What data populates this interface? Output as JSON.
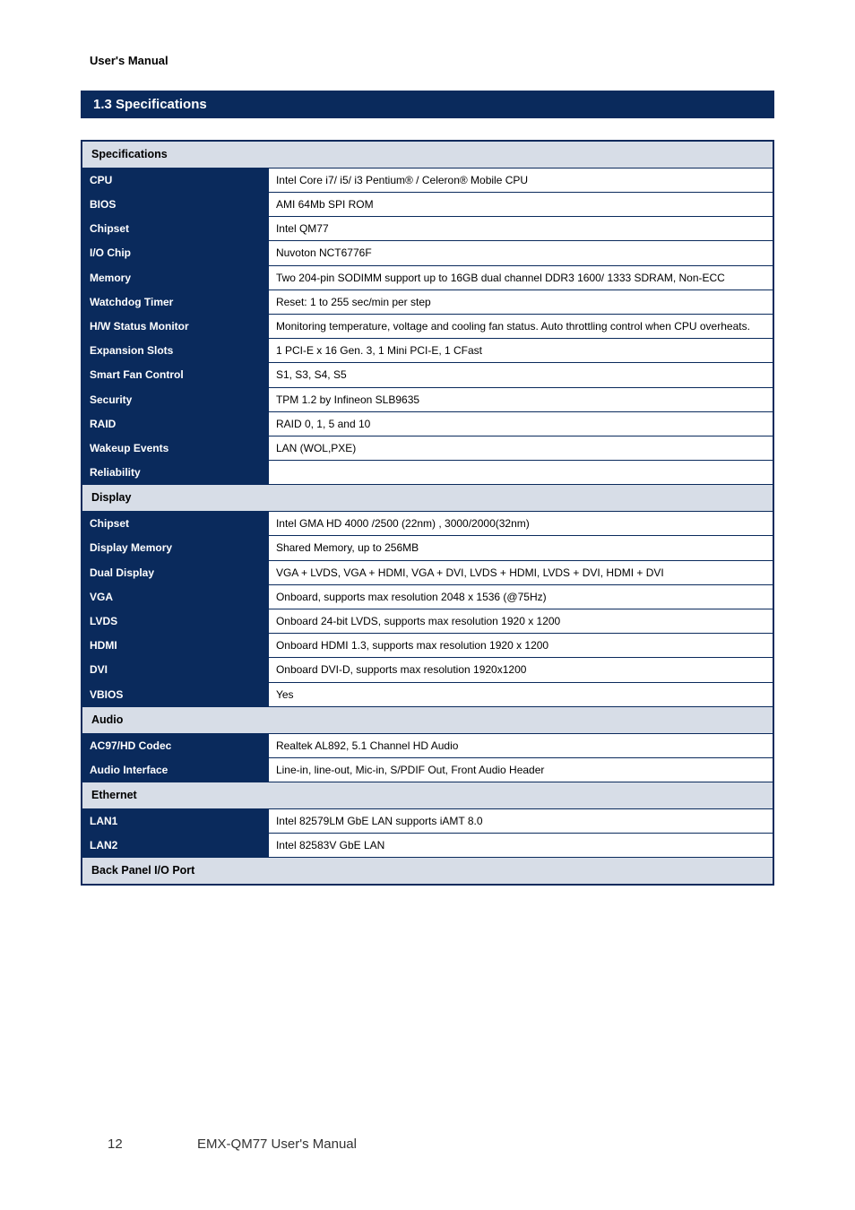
{
  "header": {
    "manual_label": "User's Manual"
  },
  "title": "1.3 Specifications",
  "sections": [
    {
      "name": "Specifications",
      "rows": [
        {
          "label": "CPU",
          "value": "Intel Core i7/ i5/ i3 Pentium® / Celeron® Mobile CPU"
        },
        {
          "label": "BIOS",
          "value": "AMI 64Mb SPI ROM"
        },
        {
          "label": "Chipset",
          "value": "Intel QM77"
        },
        {
          "label": "I/O Chip",
          "value": "Nuvoton NCT6776F"
        },
        {
          "label": "Memory",
          "value": "Two 204-pin SODIMM support up to 16GB dual channel DDR3 1600/ 1333 SDRAM, Non-ECC"
        },
        {
          "label": "Watchdog Timer",
          "value": "Reset: 1 to 255 sec/min per step"
        },
        {
          "label": "H/W Status Monitor",
          "value": "Monitoring temperature, voltage and cooling fan status. Auto throttling control when CPU overheats."
        },
        {
          "label": "Expansion Slots",
          "value": "1 PCI-E x 16 Gen. 3, 1 Mini PCI-E, 1 CFast"
        },
        {
          "label": "Smart Fan Control",
          "value": "S1, S3, S4, S5"
        },
        {
          "label": "Security",
          "value": "TPM 1.2 by Infineon SLB9635"
        },
        {
          "label": "RAID",
          "value": "RAID 0, 1, 5 and 10"
        },
        {
          "label": "Wakeup Events",
          "value": "LAN (WOL,PXE)"
        },
        {
          "label": "Reliability",
          "value": ""
        }
      ]
    },
    {
      "name": "Display",
      "rows": [
        {
          "label": "Chipset",
          "value": "Intel GMA HD 4000 /2500 (22nm) , 3000/2000(32nm)"
        },
        {
          "label": "Display Memory",
          "value": "Shared Memory, up to 256MB"
        },
        {
          "label": "Dual Display",
          "value": "VGA + LVDS, VGA + HDMI, VGA + DVI, LVDS + HDMI, LVDS + DVI, HDMI + DVI"
        },
        {
          "label": "VGA",
          "value": "Onboard, supports max resolution 2048 x 1536 (@75Hz)"
        },
        {
          "label": "LVDS",
          "value": "Onboard 24-bit LVDS, supports max resolution 1920 x 1200"
        },
        {
          "label": "HDMI",
          "value": "Onboard HDMI 1.3, supports max resolution 1920 x 1200"
        },
        {
          "label": "DVI",
          "value": "Onboard DVI-D, supports max resolution 1920x1200"
        },
        {
          "label": "VBIOS",
          "value": "Yes"
        }
      ]
    },
    {
      "name": "Audio",
      "rows": [
        {
          "label": "AC97/HD Codec",
          "value": "Realtek AL892, 5.1 Channel HD Audio"
        },
        {
          "label": "Audio Interface",
          "value": "Line-in, line-out, Mic-in, S/PDIF Out, Front Audio Header"
        }
      ]
    },
    {
      "name": "Ethernet",
      "rows": [
        {
          "label": "LAN1",
          "value": "Intel 82579LM GbE LAN supports iAMT 8.0"
        },
        {
          "label": "LAN2",
          "value": "Intel 82583V GbE LAN"
        }
      ]
    },
    {
      "name": "Back Panel I/O Port",
      "rows": []
    }
  ],
  "footer": {
    "page": "12",
    "label": "EMX-QM77 User's Manual"
  },
  "colors": {
    "navy": "#0a2a5c",
    "section_bg": "#d7dde7",
    "white": "#ffffff",
    "text": "#000000"
  }
}
